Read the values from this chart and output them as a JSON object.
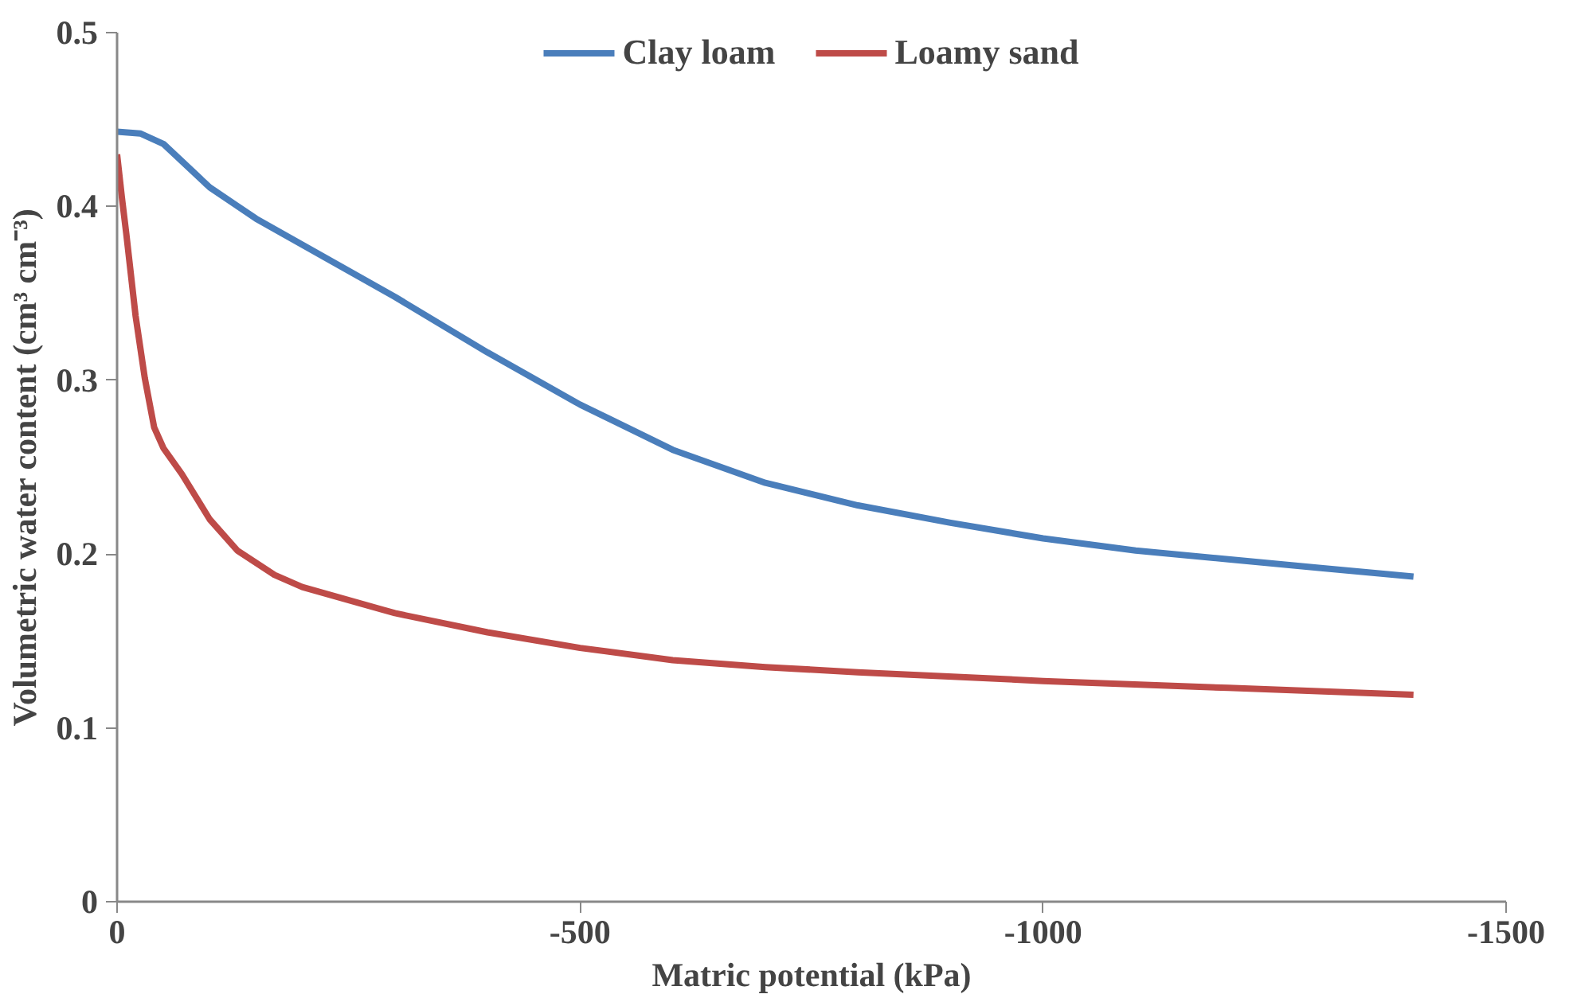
{
  "chart_data": {
    "type": "line",
    "xlabel": "Matric potential (kPa)",
    "ylabel": "Volumetric water content (cm³ cm⁻³)",
    "xlim": [
      0,
      -1500
    ],
    "xticks": [
      0,
      -500,
      -1000,
      -1500
    ],
    "ylim": [
      0,
      0.5
    ],
    "yticks": [
      0,
      0.1,
      0.2,
      0.3,
      0.4,
      0.5
    ],
    "grid": false,
    "legend": "top",
    "marker": "none",
    "line_style": "solid",
    "series": [
      {
        "name": "Clay loam",
        "color": "#4a7ebb",
        "x": [
          0,
          -25,
          -50,
          -100,
          -150,
          -200,
          -300,
          -400,
          -500,
          -600,
          -700,
          -800,
          -900,
          -1000,
          -1100,
          -1200,
          -1300,
          -1400
        ],
        "values": [
          0.443,
          0.442,
          0.436,
          0.411,
          0.393,
          0.378,
          0.348,
          0.316,
          0.286,
          0.26,
          0.241,
          0.228,
          0.218,
          0.209,
          0.202,
          0.197,
          0.192,
          0.187
        ]
      },
      {
        "name": "Loamy sand",
        "color": "#be4b48",
        "x": [
          0,
          -5,
          -10,
          -20,
          -30,
          -40,
          -50,
          -70,
          -100,
          -130,
          -170,
          -200,
          -300,
          -400,
          -500,
          -600,
          -700,
          -800,
          -1000,
          -1200,
          -1400
        ],
        "values": [
          0.43,
          0.406,
          0.384,
          0.337,
          0.301,
          0.273,
          0.261,
          0.246,
          0.22,
          0.202,
          0.188,
          0.181,
          0.166,
          0.155,
          0.146,
          0.139,
          0.135,
          0.132,
          0.127,
          0.123,
          0.119
        ]
      }
    ]
  }
}
